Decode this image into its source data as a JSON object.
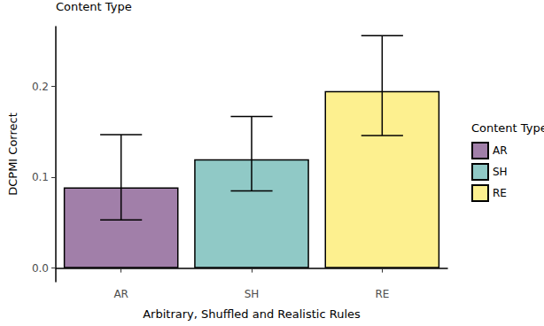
{
  "chart_data": {
    "type": "bar",
    "title": "Content Type",
    "categories": [
      "AR",
      "SH",
      "RE"
    ],
    "values": [
      0.089,
      0.12,
      0.195
    ],
    "error_low": [
      0.053,
      0.085,
      0.146
    ],
    "error_high": [
      0.147,
      0.167,
      0.256
    ],
    "colors": [
      "#a17fa9",
      "#90c9c6",
      "#fdf08f"
    ],
    "x_label": "Arbitrary, Shuffled and Realistic Rules",
    "y_label": "DCPMI Correct",
    "legend_title": "Content Type",
    "legend": "right",
    "ylim": [
      -0.015,
      0.266
    ],
    "yticks": [
      {
        "value": 0,
        "label": "0.0"
      },
      0.1,
      0.2
    ],
    "grid": false
  }
}
